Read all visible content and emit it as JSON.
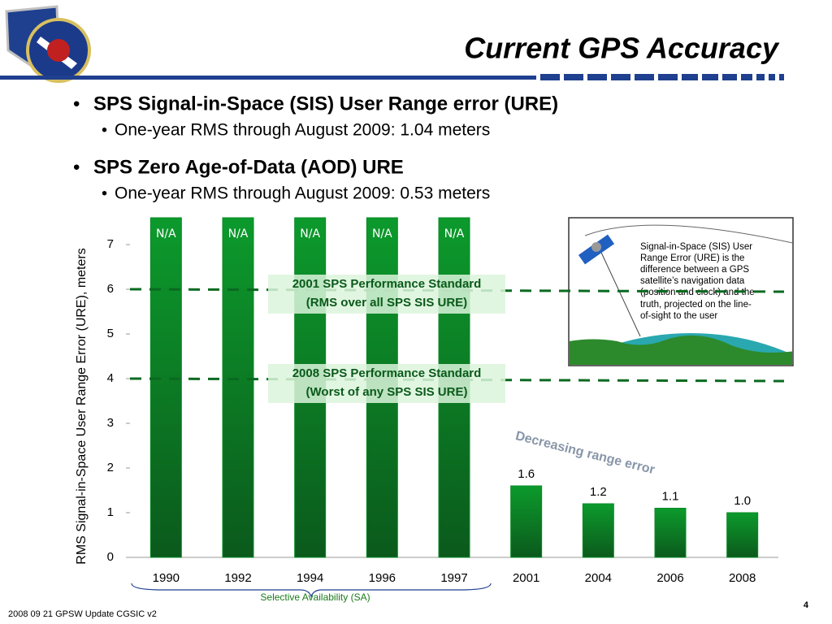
{
  "header": {
    "title": "Current GPS Accuracy"
  },
  "bullets": [
    {
      "text": "SPS Signal-in-Space (SIS) User Range error (URE)",
      "sub": "One-year RMS through August 2009:  1.04 meters"
    },
    {
      "text": "SPS Zero Age-of-Data (AOD) URE",
      "sub": "One-year RMS through August 2009:  0.53 meters"
    }
  ],
  "chart_data": {
    "type": "bar",
    "ylabel": "RMS Signal-in-Space User Range Error (URE), meters",
    "categories": [
      "1990",
      "1992",
      "1994",
      "1996",
      "1997",
      "2001",
      "2004",
      "2006",
      "2008"
    ],
    "values": [
      null,
      null,
      null,
      null,
      null,
      1.6,
      1.2,
      1.1,
      1
    ],
    "value_labels": [
      "N/A",
      "N/A",
      "N/A",
      "N/A",
      "N/A",
      "1.6",
      "1.2",
      "1.1",
      "1.0"
    ],
    "color": "#0a8a25",
    "ylim": [
      0,
      7.6
    ],
    "yticks": [
      0,
      1,
      2,
      3,
      4,
      5,
      6,
      7
    ],
    "reference_lines": [
      {
        "value": 6,
        "label_lines": [
          "2001 SPS Performance Standard",
          "(RMS over all SPS SIS URE)"
        ]
      },
      {
        "value": 4,
        "label_lines": [
          "2008 SPS Performance Standard",
          "(Worst of any SPS SIS URE)"
        ]
      }
    ],
    "annotation": "Decreasing range error",
    "bracket_label": "Selective Availability (SA)"
  },
  "inset": {
    "lines": [
      "Signal-in-Space (SIS) User",
      "Range Error (URE) is the",
      "difference between a GPS",
      "satellite’s navigation data",
      "(position and clock) and the",
      "truth, projected on the line-",
      "of-sight to the user"
    ]
  },
  "footer": {
    "text": "2008 09 21 GPSW Update CGSIC v2",
    "page": "4"
  }
}
